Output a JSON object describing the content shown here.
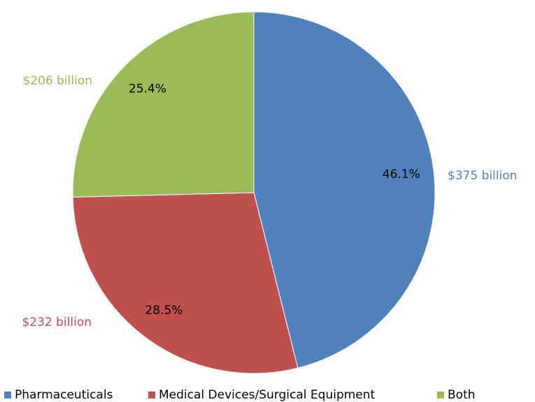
{
  "chart_data": {
    "type": "pie",
    "categories": [
      "Pharmaceuticals",
      "Medical Devices/Surgical Equipment",
      "Both"
    ],
    "values": [
      46.1,
      28.5,
      25.4
    ],
    "value_labels": [
      "46.1%",
      "28.5%",
      "25.4%"
    ],
    "amounts": [
      375,
      232,
      206
    ],
    "amount_labels": [
      "$375 billion",
      "$232 billion",
      "$206 billion"
    ],
    "colors": [
      "#4f81bd",
      "#c0504d",
      "#9bbb59"
    ],
    "legend": "bottom"
  }
}
